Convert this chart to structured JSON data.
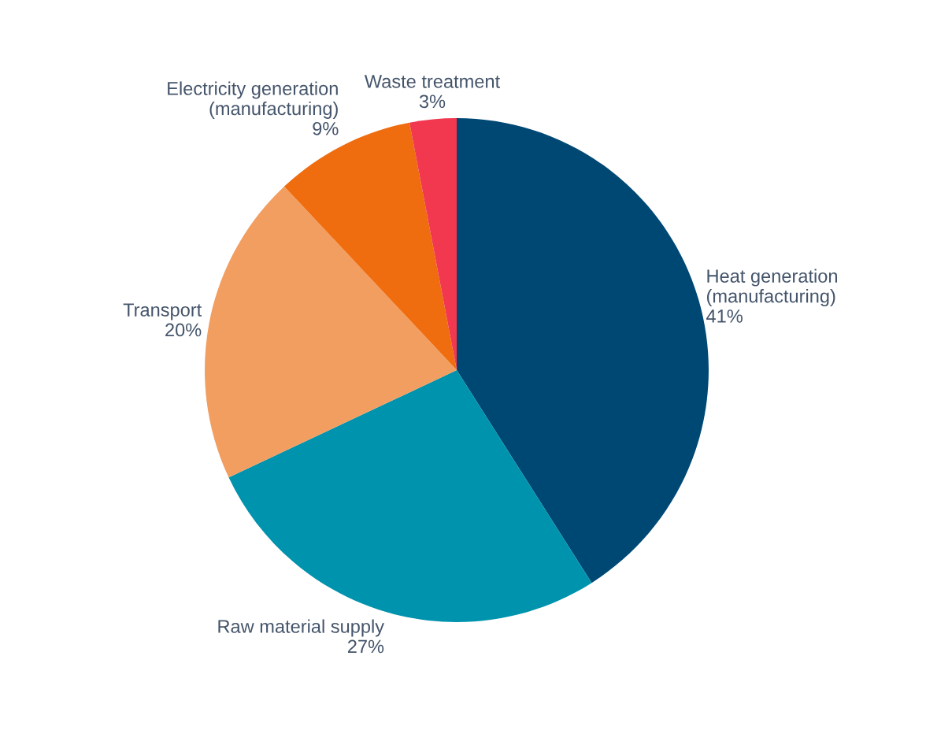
{
  "chart_data": {
    "type": "pie",
    "categories": [
      "Heat generation\n(manufacturing)",
      "Raw material supply",
      "Transport",
      "Electricity generation\n(manufacturing)",
      "Waste treatment"
    ],
    "values": [
      41,
      27,
      20,
      9,
      3
    ],
    "value_labels": [
      "41%",
      "27%",
      "20%",
      "9%",
      "3%"
    ],
    "colors": [
      "#004874",
      "#0093ad",
      "#f29e61",
      "#ef6c0f",
      "#f2384f"
    ]
  }
}
